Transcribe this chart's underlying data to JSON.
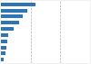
{
  "values": [
    29.0,
    22.5,
    18.0,
    15.0,
    10.5,
    6.5,
    5.5,
    4.5,
    3.8,
    2.0
  ],
  "bar_color": "#2e75b6",
  "background_color": "#f0f0f0",
  "plot_background": "#ffffff",
  "grid_color": "#b0b0b0",
  "xlim": [
    0,
    75
  ],
  "bar_height": 0.6,
  "grid_lines": [
    25,
    50,
    75
  ]
}
